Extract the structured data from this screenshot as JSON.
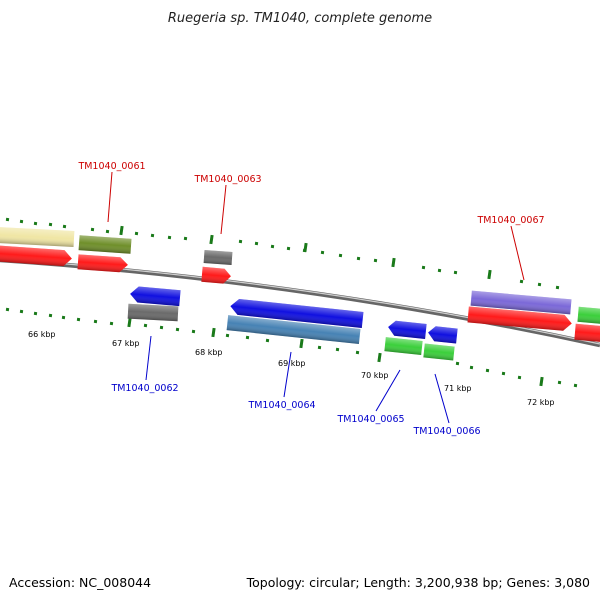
{
  "title": "Ruegeria sp. TM1040, complete genome",
  "accession": "Accession: NC_008044",
  "topology": "Topology: circular; Length: 3,200,938 bp; Genes: 3,080",
  "colors": {
    "forward_label": "#cc0000",
    "reverse_label": "#0000cc",
    "tick": "#1a7a1a",
    "backbone": "#777777"
  },
  "ticks": [
    "66 kbp",
    "67 kbp",
    "68 kbp",
    "69 kbp",
    "70 kbp",
    "71 kbp",
    "72 kbp"
  ],
  "gene_labels": [
    {
      "text": "TM1040_0061",
      "strand": "forward"
    },
    {
      "text": "TM1040_0063",
      "strand": "forward"
    },
    {
      "text": "TM1040_0067",
      "strand": "forward"
    },
    {
      "text": "TM1040_0062",
      "strand": "reverse"
    },
    {
      "text": "TM1040_0064",
      "strand": "reverse"
    },
    {
      "text": "TM1040_0065",
      "strand": "reverse"
    },
    {
      "text": "TM1040_0066",
      "strand": "reverse"
    }
  ]
}
